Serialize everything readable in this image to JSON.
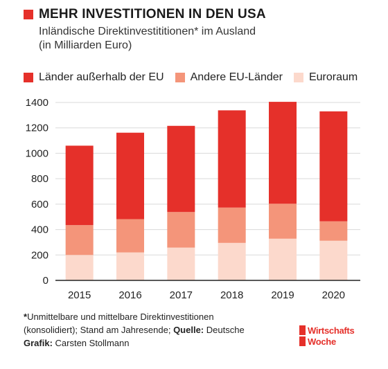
{
  "header": {
    "title": "MEHR INVESTITIONEN IN DEN USA",
    "subtitle_line1": "Inländische Direktinvestititionen* im Ausland",
    "subtitle_line2": "(in Milliarden Euro)"
  },
  "colors": {
    "accent": "#e5302a",
    "series": [
      "#e5302a",
      "#f4957a",
      "#fcd9cc"
    ]
  },
  "chart_data": {
    "type": "bar",
    "stacked": true,
    "categories": [
      "2015",
      "2016",
      "2017",
      "2018",
      "2019",
      "2020"
    ],
    "series": [
      {
        "name": "Euroraum",
        "values": [
          200,
          220,
          258,
          295,
          328,
          312
        ]
      },
      {
        "name": "Andere EU-Länder",
        "values": [
          235,
          262,
          280,
          278,
          275,
          153
        ]
      },
      {
        "name": "Länder außerhalb der EU",
        "values": [
          625,
          680,
          678,
          765,
          802,
          865
        ]
      }
    ],
    "yticks": [
      0,
      200,
      400,
      600,
      800,
      1000,
      1200,
      1400
    ],
    "ylim": [
      0,
      1400
    ],
    "grid": true,
    "legend_order": [
      "Länder außerhalb der EU",
      "Andere EU-Länder",
      "Euroraum"
    ],
    "legend_position": "top"
  },
  "footnote": {
    "star": "*",
    "line1": "Unmittelbare und mittelbare Direktinvestitionen",
    "line2_a": "(konsolidiert); Stand am Jahresende; ",
    "source_label": "Quelle:",
    "source_value": " Deutsche",
    "graphic_label": "Grafik:",
    "graphic_value": " Carsten Stollmann"
  },
  "logo": {
    "line1": "Wirtschafts",
    "line2": "Woche"
  }
}
